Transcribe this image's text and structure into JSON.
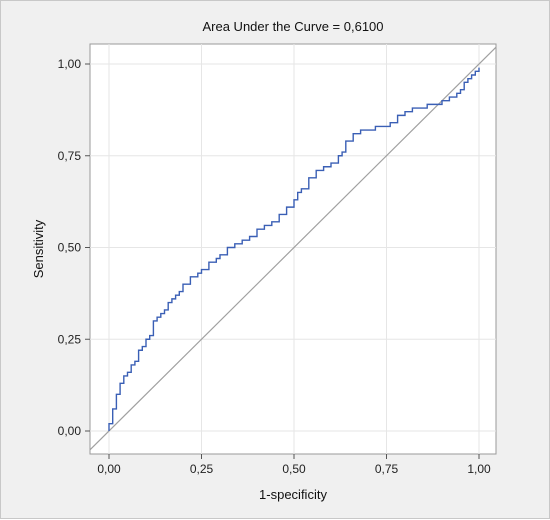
{
  "chart_data": {
    "type": "line",
    "title": "Area Under the Curve = 0,6100",
    "xlabel": "1-specificity",
    "ylabel": "Sensitivity",
    "xlim": [
      0,
      1
    ],
    "ylim": [
      0,
      1
    ],
    "xticks": [
      0,
      0.25,
      0.5,
      0.75,
      1
    ],
    "yticks": [
      0,
      0.25,
      0.5,
      0.75,
      1
    ],
    "xtick_labels": [
      "0,00",
      "0,25",
      "0,50",
      "0,75",
      "1,00"
    ],
    "ytick_labels": [
      "0,00",
      "0,25",
      "0,50",
      "0,75",
      "1,00"
    ],
    "grid": true,
    "series": [
      {
        "color": "#3a5fb5",
        "x": [
          0.0,
          0.0,
          0.01,
          0.01,
          0.02,
          0.02,
          0.03,
          0.04,
          0.05,
          0.06,
          0.07,
          0.08,
          0.09,
          0.1,
          0.11,
          0.12,
          0.13,
          0.14,
          0.15,
          0.16,
          0.17,
          0.18,
          0.19,
          0.2,
          0.22,
          0.24,
          0.25,
          0.27,
          0.29,
          0.3,
          0.32,
          0.34,
          0.36,
          0.38,
          0.4,
          0.42,
          0.44,
          0.46,
          0.48,
          0.5,
          0.51,
          0.52,
          0.54,
          0.56,
          0.58,
          0.6,
          0.61,
          0.62,
          0.63,
          0.64,
          0.66,
          0.68,
          0.7,
          0.72,
          0.74,
          0.76,
          0.78,
          0.8,
          0.82,
          0.84,
          0.86,
          0.88,
          0.9,
          0.92,
          0.94,
          0.95,
          0.96,
          0.97,
          0.98,
          0.99,
          1.0
        ],
        "y": [
          0.0,
          0.02,
          0.05,
          0.06,
          0.08,
          0.1,
          0.13,
          0.15,
          0.16,
          0.18,
          0.19,
          0.22,
          0.23,
          0.25,
          0.26,
          0.3,
          0.31,
          0.32,
          0.33,
          0.35,
          0.36,
          0.37,
          0.38,
          0.4,
          0.42,
          0.43,
          0.44,
          0.46,
          0.47,
          0.48,
          0.5,
          0.51,
          0.52,
          0.53,
          0.55,
          0.56,
          0.57,
          0.59,
          0.61,
          0.63,
          0.65,
          0.66,
          0.69,
          0.71,
          0.72,
          0.73,
          0.73,
          0.75,
          0.76,
          0.79,
          0.81,
          0.82,
          0.82,
          0.83,
          0.83,
          0.84,
          0.86,
          0.87,
          0.88,
          0.88,
          0.89,
          0.89,
          0.9,
          0.91,
          0.92,
          0.93,
          0.95,
          0.96,
          0.97,
          0.98,
          0.99
        ]
      }
    ],
    "reference_line": {
      "color": "#a0a0a0",
      "x": [
        0,
        1
      ],
      "y": [
        0,
        1
      ]
    }
  }
}
